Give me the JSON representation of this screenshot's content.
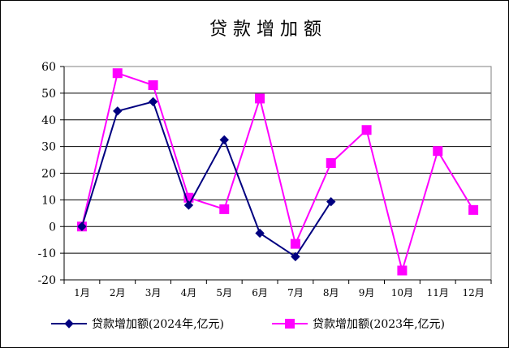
{
  "chart_data": {
    "type": "line",
    "title": "贷 款 增 加 额",
    "categories": [
      "1月",
      "2月",
      "3月",
      "4月",
      "5月",
      "6月",
      "7月",
      "8月",
      "9月",
      "10月",
      "11月",
      "12月"
    ],
    "ylim": [
      -20,
      60
    ],
    "yticks": [
      60,
      50,
      40,
      30,
      20,
      10,
      0,
      -10,
      -20
    ],
    "grid": true,
    "legend_position": "bottom",
    "series": [
      {
        "name": "贷款增加额(2024年,亿元)",
        "color": "#000080",
        "marker": "diamond",
        "values": [
          0,
          43.3,
          46.8,
          8.0,
          32.5,
          -2.5,
          -11.3,
          9.3,
          null,
          null,
          null,
          null
        ]
      },
      {
        "name": "贷款增加额(2023年,亿元)",
        "color": "#ff00ff",
        "marker": "square",
        "values": [
          0,
          57.5,
          53.0,
          10.8,
          6.5,
          48.0,
          -6.5,
          23.8,
          36.2,
          -16.5,
          28.3,
          6.2
        ]
      }
    ]
  }
}
